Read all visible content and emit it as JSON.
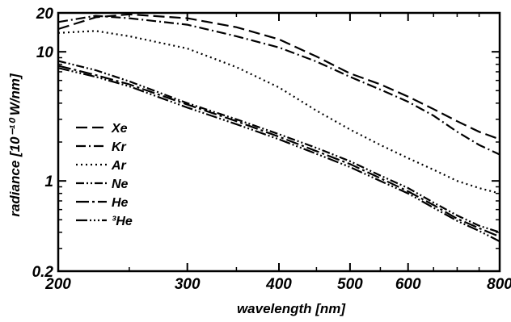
{
  "chart_data": {
    "type": "line",
    "xlabel": "wavelength  [nm]",
    "ylabel": "radiance [10⁻¹⁰ W/nm]",
    "xscale": "log",
    "yscale": "log",
    "xlim": [
      200,
      800
    ],
    "ylim": [
      0.2,
      20
    ],
    "xticks": [
      200,
      300,
      400,
      500,
      600,
      800
    ],
    "xtick_labels": [
      "200",
      "300",
      "400",
      "500",
      "600",
      "800"
    ],
    "yticks": [
      0.2,
      1,
      10,
      20
    ],
    "ytick_labels": [
      "0.2",
      "1",
      "10",
      "20"
    ],
    "grid": false,
    "legend_position": "left",
    "series": [
      {
        "name": "Xe",
        "style": "dashed",
        "x": [
          200,
          225,
          250,
          300,
          350,
          400,
          450,
          500,
          550,
          600,
          650,
          700,
          750,
          800
        ],
        "y": [
          15,
          18.5,
          19.5,
          18.2,
          15.5,
          12.5,
          9.2,
          6.8,
          5.6,
          4.5,
          3.6,
          2.9,
          2.4,
          2.1
        ]
      },
      {
        "name": "Kr",
        "style": "dash-dot",
        "x": [
          200,
          225,
          250,
          300,
          350,
          400,
          450,
          500,
          550,
          600,
          650,
          700,
          750,
          800
        ],
        "y": [
          17,
          19,
          18.2,
          16.2,
          13.2,
          10.8,
          8.4,
          6.4,
          5.1,
          4.1,
          3.2,
          2.4,
          1.9,
          1.6
        ]
      },
      {
        "name": "Ar",
        "style": "dotted",
        "x": [
          200,
          225,
          250,
          300,
          350,
          400,
          450,
          500,
          550,
          600,
          650,
          700,
          750,
          800
        ],
        "y": [
          14,
          14.5,
          13.2,
          10.6,
          7.6,
          5.3,
          3.5,
          2.5,
          1.9,
          1.5,
          1.22,
          1.0,
          0.88,
          0.8
        ]
      },
      {
        "name": "Ne",
        "style": "dash-dot-dot",
        "x": [
          200,
          225,
          250,
          300,
          350,
          400,
          450,
          500,
          550,
          600,
          650,
          700,
          750,
          800
        ],
        "y": [
          8.5,
          7.2,
          5.9,
          4.0,
          3.0,
          2.3,
          1.8,
          1.42,
          1.1,
          0.88,
          0.68,
          0.54,
          0.45,
          0.4
        ]
      },
      {
        "name": "He",
        "style": "dash-dot-long",
        "x": [
          200,
          225,
          250,
          300,
          350,
          400,
          450,
          500,
          550,
          600,
          650,
          700,
          750,
          800
        ],
        "y": [
          7.8,
          6.6,
          5.6,
          3.9,
          2.9,
          2.2,
          1.7,
          1.35,
          1.05,
          0.83,
          0.65,
          0.51,
          0.43,
          0.37
        ]
      },
      {
        "name": "³He",
        "style": "dash-dot-dot-long",
        "x": [
          200,
          225,
          250,
          300,
          350,
          400,
          450,
          500,
          550,
          600,
          650,
          700,
          750,
          800
        ],
        "y": [
          7.5,
          6.4,
          5.4,
          3.7,
          2.75,
          2.1,
          1.62,
          1.28,
          1.0,
          0.8,
          0.62,
          0.49,
          0.41,
          0.34
        ]
      }
    ]
  }
}
